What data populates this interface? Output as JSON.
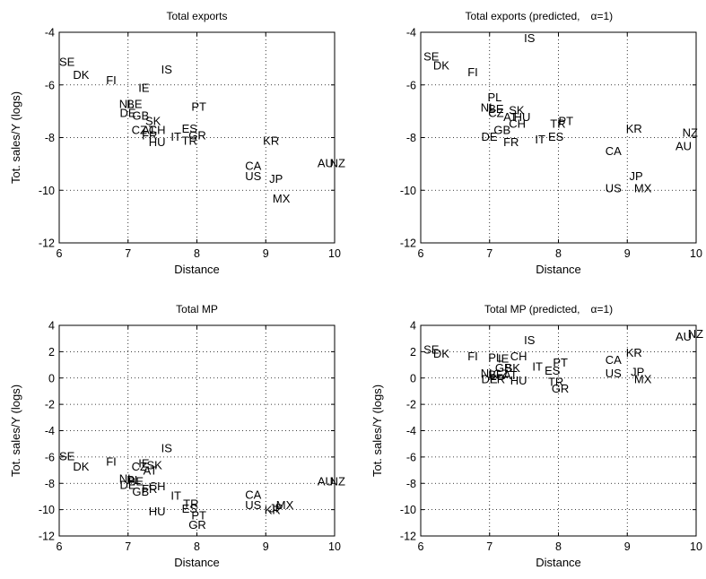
{
  "chart_data": [
    {
      "type": "scatter",
      "title": "Total exports",
      "xlabel": "Distance",
      "ylabel": "Tot. sales/Y (logs)",
      "xlim": [
        6,
        10
      ],
      "ylim": [
        -12,
        -4
      ],
      "xticks": [
        6,
        7,
        8,
        9,
        10
      ],
      "yticks": [
        -12,
        -10,
        -8,
        -6,
        -4
      ],
      "grid": true,
      "points": [
        {
          "label": "SE",
          "x": 6.0,
          "y": -5.1
        },
        {
          "label": "DK",
          "x": 6.2,
          "y": -5.6
        },
        {
          "label": "FI",
          "x": 6.68,
          "y": -5.8
        },
        {
          "label": "IS",
          "x": 7.48,
          "y": -5.4
        },
        {
          "label": "IE",
          "x": 7.15,
          "y": -6.1
        },
        {
          "label": "NL",
          "x": 6.87,
          "y": -6.7
        },
        {
          "label": "BE",
          "x": 6.98,
          "y": -6.7
        },
        {
          "label": "DE",
          "x": 6.88,
          "y": -7.05
        },
        {
          "label": "GB",
          "x": 7.06,
          "y": -7.15
        },
        {
          "label": "SK",
          "x": 7.25,
          "y": -7.35
        },
        {
          "label": "PT",
          "x": 7.92,
          "y": -6.8
        },
        {
          "label": "CZ",
          "x": 7.05,
          "y": -7.7
        },
        {
          "label": "AT",
          "x": 7.2,
          "y": -7.7
        },
        {
          "label": "CH",
          "x": 7.3,
          "y": -7.7
        },
        {
          "label": "ES",
          "x": 7.78,
          "y": -7.65
        },
        {
          "label": "FR",
          "x": 7.2,
          "y": -7.9
        },
        {
          "label": "IT",
          "x": 7.62,
          "y": -7.95
        },
        {
          "label": "GR",
          "x": 7.88,
          "y": -7.9
        },
        {
          "label": "HU",
          "x": 7.3,
          "y": -8.15
        },
        {
          "label": "TR",
          "x": 7.78,
          "y": -8.1
        },
        {
          "label": "KR",
          "x": 8.96,
          "y": -8.1
        },
        {
          "label": "AU",
          "x": 9.75,
          "y": -8.95
        },
        {
          "label": "NZ",
          "x": 9.93,
          "y": -8.95
        },
        {
          "label": "CA",
          "x": 8.7,
          "y": -9.05
        },
        {
          "label": "US",
          "x": 8.7,
          "y": -9.45
        },
        {
          "label": "JP",
          "x": 9.05,
          "y": -9.55
        },
        {
          "label": "MX",
          "x": 9.1,
          "y": -10.3
        }
      ]
    },
    {
      "type": "scatter",
      "title": "Total exports (predicted,",
      "title_alpha": "α=1)",
      "xlabel": "Distance",
      "ylabel": "",
      "xlim": [
        6,
        10
      ],
      "ylim": [
        -12,
        -4
      ],
      "xticks": [
        6,
        7,
        8,
        9,
        10
      ],
      "yticks": [
        -12,
        -10,
        -8,
        -6,
        -4
      ],
      "grid": true,
      "points": [
        {
          "label": "IS",
          "x": 7.5,
          "y": -4.2
        },
        {
          "label": "SE",
          "x": 6.04,
          "y": -4.9
        },
        {
          "label": "DK",
          "x": 6.18,
          "y": -5.25
        },
        {
          "label": "FI",
          "x": 6.68,
          "y": -5.5
        },
        {
          "label": "PL",
          "x": 6.97,
          "y": -6.45
        },
        {
          "label": "NL",
          "x": 6.87,
          "y": -6.85
        },
        {
          "label": "BE",
          "x": 6.98,
          "y": -6.9
        },
        {
          "label": "CZ",
          "x": 6.98,
          "y": -7.05
        },
        {
          "label": "SK",
          "x": 7.28,
          "y": -6.95
        },
        {
          "label": "AT",
          "x": 7.2,
          "y": -7.2
        },
        {
          "label": "HU",
          "x": 7.35,
          "y": -7.2
        },
        {
          "label": "CH",
          "x": 7.28,
          "y": -7.45
        },
        {
          "label": "TR",
          "x": 7.88,
          "y": -7.45
        },
        {
          "label": "PT",
          "x": 8.0,
          "y": -7.35
        },
        {
          "label": "GB",
          "x": 7.06,
          "y": -7.7
        },
        {
          "label": "DE",
          "x": 6.88,
          "y": -7.95
        },
        {
          "label": "FR",
          "x": 7.2,
          "y": -8.15
        },
        {
          "label": "IT",
          "x": 7.66,
          "y": -8.05
        },
        {
          "label": "ES",
          "x": 7.85,
          "y": -7.95
        },
        {
          "label": "KR",
          "x": 8.98,
          "y": -7.65
        },
        {
          "label": "NZ",
          "x": 9.8,
          "y": -7.8
        },
        {
          "label": "AU",
          "x": 9.7,
          "y": -8.3
        },
        {
          "label": "CA",
          "x": 8.68,
          "y": -8.5
        },
        {
          "label": "JP",
          "x": 9.03,
          "y": -9.45
        },
        {
          "label": "US",
          "x": 8.68,
          "y": -9.9
        },
        {
          "label": "MX",
          "x": 9.1,
          "y": -9.9
        }
      ]
    },
    {
      "type": "scatter",
      "title": "Total MP",
      "xlabel": "Distance",
      "ylabel": "Tot. sales/Y (logs)",
      "xlim": [
        6,
        10
      ],
      "ylim": [
        -12,
        4
      ],
      "xticks": [
        6,
        7,
        8,
        9,
        10
      ],
      "yticks": [
        -12,
        -10,
        -8,
        -6,
        -4,
        -2,
        0,
        2,
        4
      ],
      "grid": true,
      "points": [
        {
          "label": "IS",
          "x": 7.48,
          "y": -5.3
        },
        {
          "label": "SE",
          "x": 6.0,
          "y": -5.9
        },
        {
          "label": "DK",
          "x": 6.2,
          "y": -6.7
        },
        {
          "label": "FI",
          "x": 6.68,
          "y": -6.3
        },
        {
          "label": "IE",
          "x": 7.15,
          "y": -6.45
        },
        {
          "label": "CZ",
          "x": 7.05,
          "y": -6.7
        },
        {
          "label": "SK",
          "x": 7.27,
          "y": -6.6
        },
        {
          "label": "AT",
          "x": 7.22,
          "y": -7.0
        },
        {
          "label": "NL",
          "x": 6.87,
          "y": -7.6
        },
        {
          "label": "PL",
          "x": 6.98,
          "y": -7.7
        },
        {
          "label": "BE",
          "x": 7.0,
          "y": -7.8
        },
        {
          "label": "DE",
          "x": 6.88,
          "y": -8.1
        },
        {
          "label": "CH",
          "x": 7.3,
          "y": -8.2
        },
        {
          "label": "FR",
          "x": 7.2,
          "y": -8.4
        },
        {
          "label": "GB",
          "x": 7.06,
          "y": -8.6
        },
        {
          "label": "IT",
          "x": 7.62,
          "y": -8.9
        },
        {
          "label": "TR",
          "x": 7.8,
          "y": -9.5
        },
        {
          "label": "ES",
          "x": 7.78,
          "y": -9.9
        },
        {
          "label": "PT",
          "x": 7.92,
          "y": -10.4
        },
        {
          "label": "GR",
          "x": 7.88,
          "y": -11.1
        },
        {
          "label": "HU",
          "x": 7.3,
          "y": -10.1
        },
        {
          "label": "CA",
          "x": 8.7,
          "y": -8.85
        },
        {
          "label": "US",
          "x": 8.7,
          "y": -9.6
        },
        {
          "label": "KR",
          "x": 8.98,
          "y": -10.0
        },
        {
          "label": "JP",
          "x": 9.05,
          "y": -9.85
        },
        {
          "label": "MX",
          "x": 9.15,
          "y": -9.6
        },
        {
          "label": "AU",
          "x": 9.75,
          "y": -7.8
        },
        {
          "label": "NZ",
          "x": 9.93,
          "y": -7.8
        }
      ]
    },
    {
      "type": "scatter",
      "title": "Total MP (predicted,",
      "title_alpha": "α=1)",
      "xlabel": "Distance",
      "ylabel": "Tot. sales/Y (logs)",
      "xlim": [
        6,
        10
      ],
      "ylim": [
        -12,
        4
      ],
      "xticks": [
        6,
        7,
        8,
        9,
        10
      ],
      "yticks": [
        -12,
        -10,
        -8,
        -6,
        -4,
        -2,
        0,
        2,
        4
      ],
      "grid": true,
      "points": [
        {
          "label": "IS",
          "x": 7.5,
          "y": 2.9
        },
        {
          "label": "SE",
          "x": 6.04,
          "y": 2.2
        },
        {
          "label": "DK",
          "x": 6.18,
          "y": 1.9
        },
        {
          "label": "FI",
          "x": 6.68,
          "y": 1.7
        },
        {
          "label": "PL",
          "x": 6.98,
          "y": 1.6
        },
        {
          "label": "IE",
          "x": 7.12,
          "y": 1.5
        },
        {
          "label": "CH",
          "x": 7.3,
          "y": 1.7
        },
        {
          "label": "GB",
          "x": 7.08,
          "y": 0.8
        },
        {
          "label": "SK",
          "x": 7.22,
          "y": 0.8
        },
        {
          "label": "PT",
          "x": 7.92,
          "y": 1.2
        },
        {
          "label": "IT",
          "x": 7.62,
          "y": 0.9
        },
        {
          "label": "ES",
          "x": 7.8,
          "y": 0.6
        },
        {
          "label": "NL",
          "x": 6.87,
          "y": 0.4
        },
        {
          "label": "BE",
          "x": 6.98,
          "y": 0.3
        },
        {
          "label": "CZ",
          "x": 7.05,
          "y": 0.35
        },
        {
          "label": "AT",
          "x": 7.2,
          "y": 0.25
        },
        {
          "label": "DE",
          "x": 6.88,
          "y": -0.05
        },
        {
          "label": "FR",
          "x": 7.0,
          "y": -0.05
        },
        {
          "label": "HU",
          "x": 7.3,
          "y": -0.15
        },
        {
          "label": "TR",
          "x": 7.85,
          "y": -0.25
        },
        {
          "label": "GR",
          "x": 7.9,
          "y": -0.75
        },
        {
          "label": "CA",
          "x": 8.68,
          "y": 1.4
        },
        {
          "label": "KR",
          "x": 8.98,
          "y": 1.95
        },
        {
          "label": "US",
          "x": 8.68,
          "y": 0.4
        },
        {
          "label": "JP",
          "x": 9.05,
          "y": 0.5
        },
        {
          "label": "MX",
          "x": 9.1,
          "y": -0.05
        },
        {
          "label": "AU",
          "x": 9.7,
          "y": 3.2
        },
        {
          "label": "NZ",
          "x": 9.88,
          "y": 3.4
        }
      ]
    }
  ]
}
